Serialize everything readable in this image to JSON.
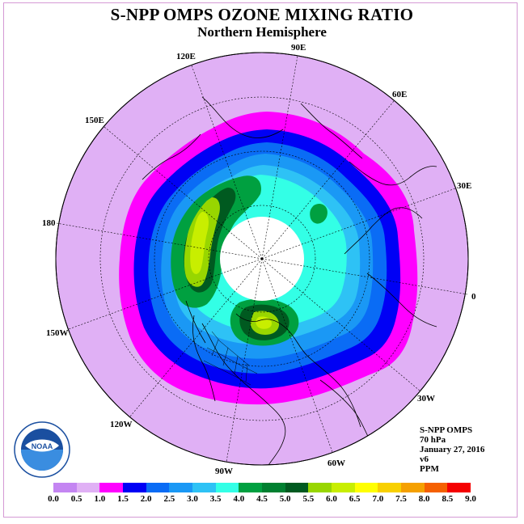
{
  "header": {
    "title": "S-NPP OMPS OZONE MIXING RATIO",
    "subtitle": "Northern Hemisphere"
  },
  "longitude_labels": [
    "90E",
    "60E",
    "30E",
    "0",
    "30W",
    "60W",
    "90W",
    "120W",
    "150W",
    "180",
    "150E",
    "120E"
  ],
  "info": {
    "instrument": "S-NPP OMPS",
    "level": "70 hPa",
    "date": "January 27, 2016",
    "version": "v6",
    "units": "PPM"
  },
  "logo": {
    "text": "NOAA",
    "icon": "noaa-logo-icon"
  },
  "colorbar": {
    "ticks": [
      "0.0",
      "0.5",
      "1.0",
      "1.5",
      "2.0",
      "2.5",
      "3.0",
      "3.5",
      "4.0",
      "4.5",
      "5.0",
      "5.5",
      "6.0",
      "6.5",
      "7.0",
      "7.5",
      "8.0",
      "8.5",
      "9.0"
    ],
    "colors": [
      "#c485f2",
      "#e0b0f5",
      "#ff00ff",
      "#0000f5",
      "#0a6cf5",
      "#1a98f5",
      "#2ec2f5",
      "#33ffe6",
      "#00a040",
      "#008030",
      "#005a20",
      "#98d600",
      "#c8ee00",
      "#ffff00",
      "#f8d000",
      "#f5a000",
      "#f56000",
      "#f50000",
      "#8c5a3c"
    ]
  }
}
